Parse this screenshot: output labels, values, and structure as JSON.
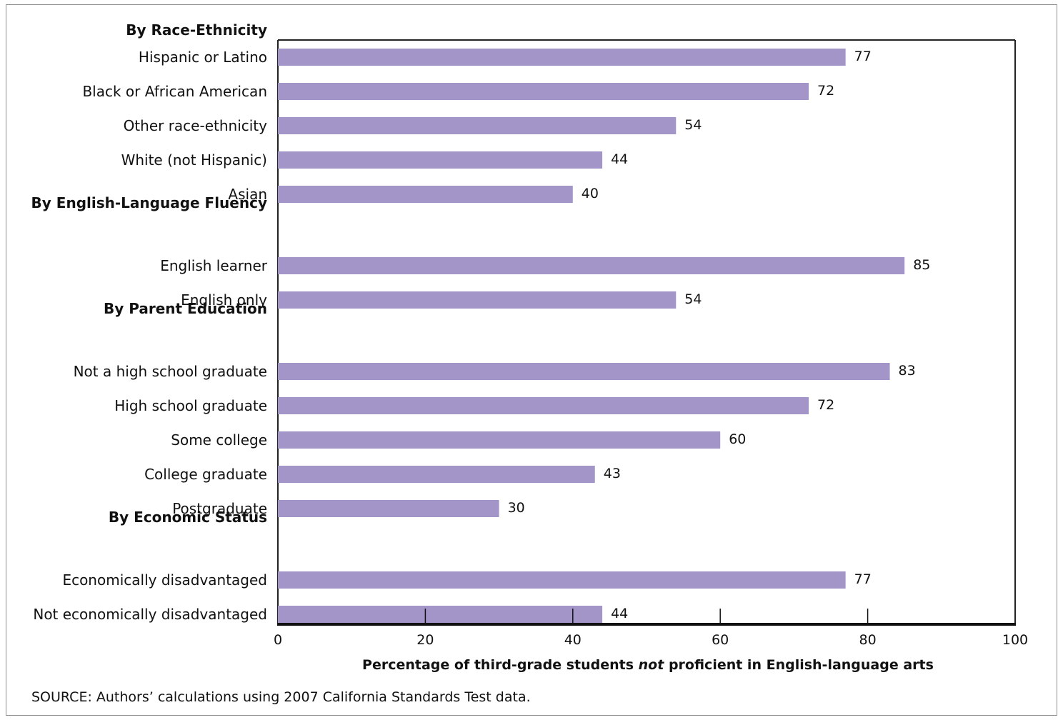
{
  "chart_data": {
    "type": "bar",
    "orientation": "horizontal",
    "groups": [
      {
        "title": "By Race-Ethnicity",
        "items": [
          {
            "label": "Hispanic or Latino",
            "value": 77
          },
          {
            "label": "Black or African American",
            "value": 72
          },
          {
            "label": "Other race-ethnicity",
            "value": 54
          },
          {
            "label": "White (not Hispanic)",
            "value": 44
          },
          {
            "label": "Asian",
            "value": 40
          }
        ]
      },
      {
        "title": "By English-Language Fluency",
        "items": [
          {
            "label": "English learner",
            "value": 85
          },
          {
            "label": "English only",
            "value": 54
          }
        ]
      },
      {
        "title": "By Parent Education",
        "items": [
          {
            "label": "Not a high school graduate",
            "value": 83
          },
          {
            "label": "High school graduate",
            "value": 72
          },
          {
            "label": "Some college",
            "value": 60
          },
          {
            "label": "College graduate",
            "value": 43
          },
          {
            "label": "Postgraduate",
            "value": 30
          }
        ]
      },
      {
        "title": "By Economic Status",
        "items": [
          {
            "label": "Economically disadvantaged",
            "value": 77
          },
          {
            "label": "Not economically disadvantaged",
            "value": 44
          }
        ]
      }
    ],
    "xlim": [
      0,
      100
    ],
    "xticks": [
      "0",
      "20",
      "40",
      "60",
      "80",
      "100"
    ],
    "xlabel": {
      "before": "Percentage of third-grade students ",
      "emphasis": "not",
      "after": " proficient in English-language arts"
    },
    "bar_color": "#a495c8",
    "grid": false
  },
  "source_note": "SOURCE: Authors’ calculations using 2007 California Standards Test data."
}
